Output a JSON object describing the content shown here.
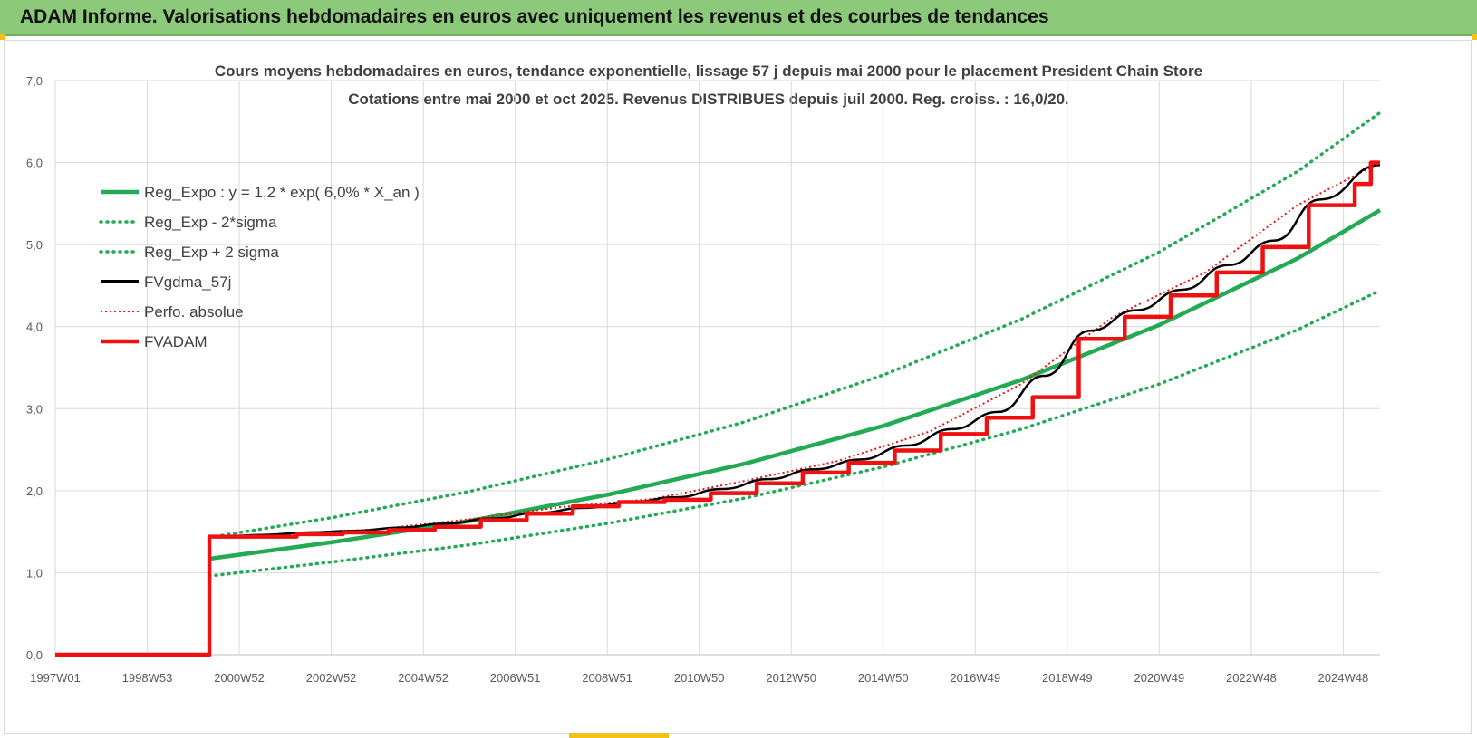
{
  "header": {
    "title": "ADAM Informe. Valorisations hebdomadaires en euros avec uniquement les revenus et des courbes de tendances"
  },
  "colors": {
    "header_bg": "#8dc97a",
    "green": "#22aa55",
    "red": "#ee1111",
    "black": "#000000",
    "grid": "#d9d9d9",
    "accent": "#f2c21b"
  },
  "chart_data": {
    "type": "line",
    "title": "Cours moyens hebdomadaires en euros, tendance exponentielle, lissage 57 j depuis mai 2000 pour le placement President Chain Store",
    "subtitle": "Cotations entre mai 2000 et oct 2025. Revenus DISTRIBUES depuis juil 2000. Reg. croiss. : 16,0/20.",
    "xlabel": "",
    "ylabel": "",
    "x_range": [
      1997.0,
      2025.8
    ],
    "ylim": [
      0,
      7
    ],
    "yticks": [
      "0,0",
      "1,0",
      "2,0",
      "3,0",
      "4,0",
      "5,0",
      "6,0",
      "7,0"
    ],
    "xticks": [
      {
        "label": "1997W01",
        "x": 1997.0
      },
      {
        "label": "1998W53",
        "x": 1999.0
      },
      {
        "label": "2000W52",
        "x": 2001.0
      },
      {
        "label": "2002W52",
        "x": 2003.0
      },
      {
        "label": "2004W52",
        "x": 2005.0
      },
      {
        "label": "2006W51",
        "x": 2007.0
      },
      {
        "label": "2008W51",
        "x": 2009.0
      },
      {
        "label": "2010W50",
        "x": 2011.0
      },
      {
        "label": "2012W50",
        "x": 2013.0
      },
      {
        "label": "2014W50",
        "x": 2015.0
      },
      {
        "label": "2016W49",
        "x": 2017.0
      },
      {
        "label": "2018W49",
        "x": 2019.0
      },
      {
        "label": "2020W49",
        "x": 2021.0
      },
      {
        "label": "2022W48",
        "x": 2023.0
      },
      {
        "label": "2024W48",
        "x": 2025.0
      }
    ],
    "grid": true,
    "legend_position": "top-left",
    "series": [
      {
        "name": "Reg_Expo : y = 1,2 * exp( 6,0% *  X_an )",
        "style": "solid",
        "color": "#22aa55",
        "points": [
          [
            2000.35,
            1.17
          ],
          [
            2003,
            1.37
          ],
          [
            2006,
            1.63
          ],
          [
            2009,
            1.95
          ],
          [
            2012,
            2.33
          ],
          [
            2015,
            2.79
          ],
          [
            2018,
            3.35
          ],
          [
            2021,
            4.02
          ],
          [
            2024,
            4.83
          ],
          [
            2025.8,
            5.42
          ]
        ]
      },
      {
        "name": "Reg_Exp - 2*sigma",
        "style": "dotted",
        "color": "#22aa55",
        "points": [
          [
            2000.35,
            0.96
          ],
          [
            2003,
            1.13
          ],
          [
            2006,
            1.34
          ],
          [
            2009,
            1.6
          ],
          [
            2012,
            1.91
          ],
          [
            2015,
            2.29
          ],
          [
            2018,
            2.75
          ],
          [
            2021,
            3.3
          ],
          [
            2024,
            3.96
          ],
          [
            2025.8,
            4.44
          ]
        ]
      },
      {
        "name": "Reg_Exp + 2 sigma",
        "style": "dotted",
        "color": "#22aa55",
        "points": [
          [
            2000.35,
            1.43
          ],
          [
            2003,
            1.67
          ],
          [
            2006,
            1.99
          ],
          [
            2009,
            2.38
          ],
          [
            2012,
            2.84
          ],
          [
            2015,
            3.41
          ],
          [
            2018,
            4.09
          ],
          [
            2021,
            4.91
          ],
          [
            2024,
            5.89
          ],
          [
            2025.8,
            6.61
          ]
        ]
      },
      {
        "name": "FVgdma_57j",
        "style": "solid",
        "color": "#000000",
        "points": [
          [
            2000.5,
            1.44
          ],
          [
            2001.5,
            1.46
          ],
          [
            2002.5,
            1.49
          ],
          [
            2003.5,
            1.51
          ],
          [
            2004.5,
            1.55
          ],
          [
            2005.5,
            1.6
          ],
          [
            2006.5,
            1.66
          ],
          [
            2007.5,
            1.73
          ],
          [
            2008.5,
            1.79
          ],
          [
            2009.5,
            1.86
          ],
          [
            2010.5,
            1.92
          ],
          [
            2011.5,
            2.02
          ],
          [
            2012.5,
            2.14
          ],
          [
            2013.5,
            2.26
          ],
          [
            2014.5,
            2.38
          ],
          [
            2015.5,
            2.55
          ],
          [
            2016.5,
            2.75
          ],
          [
            2017.5,
            2.96
          ],
          [
            2018.5,
            3.4
          ],
          [
            2019.5,
            3.95
          ],
          [
            2020.5,
            4.2
          ],
          [
            2021.5,
            4.45
          ],
          [
            2022.5,
            4.75
          ],
          [
            2023.5,
            5.05
          ],
          [
            2024.5,
            5.55
          ],
          [
            2025.8,
            5.97
          ]
        ]
      },
      {
        "name": "Perfo. absolue",
        "style": "dotted",
        "color": "#ee1111",
        "points": [
          [
            2000.4,
            1.44
          ],
          [
            2002,
            1.47
          ],
          [
            2004,
            1.53
          ],
          [
            2006,
            1.65
          ],
          [
            2008,
            1.8
          ],
          [
            2010,
            1.9
          ],
          [
            2012,
            2.12
          ],
          [
            2014,
            2.36
          ],
          [
            2016,
            2.72
          ],
          [
            2018,
            3.3
          ],
          [
            2020,
            4.12
          ],
          [
            2022,
            4.66
          ],
          [
            2024,
            5.48
          ],
          [
            2025.8,
            6.0
          ]
        ]
      },
      {
        "name": "FVADAM",
        "style": "solid",
        "color": "#ee1111",
        "steps": [
          [
            1997.0,
            0.0
          ],
          [
            2000.35,
            1.44
          ],
          [
            2002.25,
            1.47
          ],
          [
            2003.25,
            1.49
          ],
          [
            2004.25,
            1.52
          ],
          [
            2005.25,
            1.56
          ],
          [
            2006.25,
            1.64
          ],
          [
            2007.25,
            1.72
          ],
          [
            2008.25,
            1.81
          ],
          [
            2009.25,
            1.86
          ],
          [
            2010.25,
            1.89
          ],
          [
            2011.25,
            1.97
          ],
          [
            2012.25,
            2.09
          ],
          [
            2013.25,
            2.22
          ],
          [
            2014.25,
            2.34
          ],
          [
            2015.25,
            2.49
          ],
          [
            2016.25,
            2.69
          ],
          [
            2017.25,
            2.89
          ],
          [
            2018.25,
            3.14
          ],
          [
            2019.25,
            3.85
          ],
          [
            2020.25,
            4.12
          ],
          [
            2021.25,
            4.38
          ],
          [
            2022.25,
            4.66
          ],
          [
            2023.25,
            4.97
          ],
          [
            2024.25,
            5.48
          ],
          [
            2025.25,
            5.74
          ],
          [
            2025.6,
            6.0
          ]
        ],
        "end_x": 2025.8
      }
    ]
  }
}
